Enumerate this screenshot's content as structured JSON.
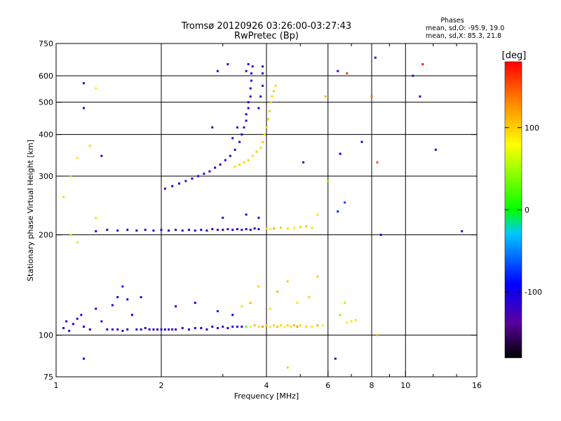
{
  "chart_data": {
    "type": "scatter",
    "title": "Tromsø 20120926 03:26:00-03:27:43",
    "subtitle": "RwPretec (Bp)",
    "xlabel": "Frequency [MHz]",
    "ylabel": "Stationary phase Virtual Height [km]",
    "x_scale": "log",
    "y_scale": "log",
    "xlim": [
      1,
      16
    ],
    "ylim": [
      75,
      750
    ],
    "x_ticks": [
      1,
      2,
      4,
      6,
      8,
      10,
      16
    ],
    "y_ticks": [
      75,
      100,
      200,
      300,
      400,
      500,
      600,
      750
    ],
    "x_gridlines": [
      2,
      4,
      6,
      8,
      10
    ],
    "y_gridlines": [
      100,
      200,
      300,
      400,
      500,
      600
    ],
    "stats": {
      "heading": "Phases",
      "line1": "mean, sd,O: -95.9, 19.0",
      "line2": "mean, sd,X:  85.3, 21.8"
    },
    "colorbar": {
      "label": "[deg]",
      "min": -180,
      "max": 180,
      "ticks": [
        100,
        0,
        -100
      ],
      "colors": [
        "#000000",
        "#5a00a0",
        "#0000ff",
        "#00c8ff",
        "#00ff00",
        "#ffff00",
        "#ff8000",
        "#ff0000"
      ]
    },
    "series": [
      {
        "points": [
          [
            1.05,
            105,
            -110
          ],
          [
            1.07,
            110,
            -105
          ],
          [
            1.09,
            103,
            -115
          ],
          [
            1.12,
            108,
            -100
          ],
          [
            1.15,
            112,
            -110
          ],
          [
            1.18,
            115,
            -95
          ],
          [
            1.2,
            106,
            -105
          ],
          [
            1.25,
            104,
            -110
          ],
          [
            1.3,
            120,
            -100
          ],
          [
            1.35,
            110,
            -105
          ],
          [
            1.4,
            104,
            -110
          ],
          [
            1.45,
            104,
            -115
          ],
          [
            1.5,
            104,
            -110
          ],
          [
            1.55,
            103,
            -105
          ],
          [
            1.6,
            104,
            -110
          ],
          [
            1.65,
            115,
            -90
          ],
          [
            1.7,
            104,
            -110
          ],
          [
            1.75,
            104,
            -108
          ],
          [
            1.8,
            105,
            -110
          ],
          [
            1.85,
            104,
            -112
          ],
          [
            1.9,
            104,
            -110
          ],
          [
            1.95,
            104,
            -108
          ],
          [
            2.0,
            104,
            -110
          ],
          [
            2.05,
            104,
            -106
          ],
          [
            2.1,
            104,
            -110
          ],
          [
            2.15,
            104,
            -108
          ],
          [
            2.2,
            104,
            -110
          ],
          [
            2.3,
            105,
            -108
          ],
          [
            2.4,
            104,
            -110
          ],
          [
            2.5,
            105,
            -110
          ],
          [
            2.6,
            105,
            -108
          ],
          [
            2.7,
            104,
            -110
          ],
          [
            2.8,
            106,
            -100
          ],
          [
            2.9,
            105,
            -110
          ],
          [
            3.0,
            106,
            -105
          ],
          [
            3.1,
            105,
            -108
          ],
          [
            3.2,
            106,
            -110
          ],
          [
            3.3,
            106,
            -95
          ],
          [
            3.4,
            106,
            -100
          ],
          [
            3.5,
            106,
            30
          ],
          [
            3.6,
            106,
            70
          ],
          [
            3.7,
            107,
            110
          ],
          [
            3.8,
            106,
            95
          ],
          [
            3.9,
            106,
            120
          ],
          [
            4.0,
            107,
            105
          ],
          [
            4.1,
            106,
            90
          ],
          [
            4.2,
            107,
            100
          ],
          [
            4.3,
            106,
            110
          ],
          [
            4.4,
            107,
            95
          ],
          [
            4.5,
            106,
            85
          ],
          [
            4.6,
            107,
            100
          ],
          [
            4.7,
            106,
            90
          ],
          [
            4.8,
            107,
            105
          ],
          [
            4.9,
            106,
            120
          ],
          [
            5.0,
            107,
            95
          ],
          [
            5.2,
            106,
            100
          ],
          [
            5.4,
            106,
            90
          ],
          [
            5.6,
            107,
            110
          ],
          [
            5.8,
            107,
            85
          ],
          [
            6.8,
            109,
            85
          ],
          [
            7.0,
            110,
            90
          ],
          [
            7.2,
            111,
            95
          ],
          [
            1.45,
            123,
            -100
          ],
          [
            1.5,
            130,
            -95
          ],
          [
            1.55,
            140,
            -80
          ],
          [
            1.6,
            128,
            -90
          ],
          [
            1.75,
            130,
            -85
          ],
          [
            2.2,
            122,
            -90
          ],
          [
            2.5,
            125,
            -95
          ],
          [
            2.9,
            118,
            -80
          ],
          [
            3.2,
            115,
            -90
          ],
          [
            3.4,
            122,
            60
          ],
          [
            3.6,
            125,
            110
          ],
          [
            3.8,
            140,
            100
          ],
          [
            4.1,
            120,
            90
          ],
          [
            4.3,
            135,
            110
          ],
          [
            4.6,
            145,
            100
          ],
          [
            4.9,
            125,
            90
          ],
          [
            5.3,
            130,
            95
          ],
          [
            5.6,
            150,
            100
          ],
          [
            6.5,
            115,
            40
          ],
          [
            6.7,
            125,
            50
          ],
          [
            1.3,
            205,
            -110
          ],
          [
            1.4,
            207,
            -105
          ],
          [
            1.5,
            206,
            -110
          ],
          [
            1.6,
            207,
            -108
          ],
          [
            1.7,
            206,
            -110
          ],
          [
            1.8,
            207,
            -106
          ],
          [
            1.9,
            206,
            -110
          ],
          [
            2.0,
            207,
            -108
          ],
          [
            2.1,
            206,
            -110
          ],
          [
            2.2,
            207,
            -105
          ],
          [
            2.3,
            206,
            -110
          ],
          [
            2.4,
            207,
            -108
          ],
          [
            2.5,
            206,
            -110
          ],
          [
            2.6,
            207,
            -105
          ],
          [
            2.7,
            206,
            -110
          ],
          [
            2.8,
            208,
            -100
          ],
          [
            2.9,
            207,
            -105
          ],
          [
            3.0,
            207,
            -100
          ],
          [
            3.1,
            208,
            -110
          ],
          [
            3.2,
            207,
            -105
          ],
          [
            3.3,
            208,
            -100
          ],
          [
            3.4,
            207,
            -110
          ],
          [
            3.5,
            208,
            -95
          ],
          [
            3.6,
            207,
            -105
          ],
          [
            3.7,
            209,
            -100
          ],
          [
            3.8,
            208,
            -105
          ],
          [
            4.0,
            209,
            100
          ],
          [
            4.1,
            208,
            90
          ],
          [
            4.2,
            209,
            110
          ],
          [
            4.4,
            210,
            100
          ],
          [
            4.6,
            209,
            95
          ],
          [
            4.8,
            210,
            85
          ],
          [
            5.0,
            211,
            100
          ],
          [
            5.2,
            212,
            105
          ],
          [
            5.4,
            210,
            95
          ],
          [
            3.0,
            225,
            -110
          ],
          [
            3.5,
            230,
            -100
          ],
          [
            3.8,
            225,
            -105
          ],
          [
            5.6,
            230,
            90
          ],
          [
            6.4,
            235,
            -80
          ],
          [
            6.7,
            250,
            -70
          ],
          [
            2.05,
            275,
            -110
          ],
          [
            2.15,
            280,
            -112
          ],
          [
            2.25,
            285,
            -108
          ],
          [
            2.35,
            290,
            -110
          ],
          [
            2.45,
            295,
            -112
          ],
          [
            2.55,
            300,
            -108
          ],
          [
            2.65,
            305,
            -110
          ],
          [
            2.75,
            310,
            -112
          ],
          [
            2.85,
            318,
            -108
          ],
          [
            2.95,
            325,
            -110
          ],
          [
            3.05,
            335,
            -112
          ],
          [
            3.15,
            345,
            -108
          ],
          [
            3.25,
            360,
            -110
          ],
          [
            3.35,
            380,
            -112
          ],
          [
            3.4,
            400,
            -110
          ],
          [
            3.45,
            420,
            -115
          ],
          [
            3.5,
            440,
            -110
          ],
          [
            3.5,
            460,
            -105
          ],
          [
            3.55,
            480,
            -110
          ],
          [
            3.55,
            500,
            -112
          ],
          [
            3.6,
            520,
            -115
          ],
          [
            3.6,
            550,
            -110
          ],
          [
            3.62,
            580,
            -112
          ],
          [
            3.62,
            610,
            -110
          ],
          [
            3.65,
            640,
            -115
          ],
          [
            3.55,
            650,
            -120
          ],
          [
            3.5,
            620,
            -118
          ],
          [
            3.3,
            420,
            -115
          ],
          [
            3.2,
            390,
            -110
          ],
          [
            3.8,
            480,
            -110
          ],
          [
            3.85,
            520,
            -112
          ],
          [
            3.9,
            560,
            -115
          ],
          [
            3.9,
            610,
            -110
          ],
          [
            3.9,
            640,
            -112
          ],
          [
            3.25,
            320,
            95
          ],
          [
            3.35,
            325,
            100
          ],
          [
            3.45,
            330,
            95
          ],
          [
            3.55,
            335,
            100
          ],
          [
            3.65,
            345,
            95
          ],
          [
            3.75,
            355,
            100
          ],
          [
            3.85,
            365,
            95
          ],
          [
            3.9,
            380,
            100
          ],
          [
            3.95,
            400,
            95
          ],
          [
            4.0,
            420,
            100
          ],
          [
            4.05,
            445,
            95
          ],
          [
            4.08,
            470,
            100
          ],
          [
            4.12,
            500,
            105
          ],
          [
            4.15,
            520,
            95
          ],
          [
            4.2,
            540,
            100
          ],
          [
            4.25,
            560,
            95
          ],
          [
            1.1,
            300,
            50
          ],
          [
            1.15,
            340,
            90
          ],
          [
            1.2,
            480,
            -110
          ],
          [
            1.2,
            570,
            -115
          ],
          [
            1.25,
            370,
            95
          ],
          [
            1.3,
            550,
            90
          ],
          [
            1.05,
            260,
            60
          ],
          [
            1.1,
            200,
            60
          ],
          [
            1.15,
            190,
            60
          ],
          [
            1.2,
            85,
            -100
          ],
          [
            1.3,
            225,
            60
          ],
          [
            1.35,
            345,
            -110
          ],
          [
            2.8,
            420,
            -110
          ],
          [
            2.9,
            620,
            -110
          ],
          [
            3.1,
            650,
            -120
          ],
          [
            5.9,
            520,
            110
          ],
          [
            6.4,
            620,
            -110
          ],
          [
            6.8,
            610,
            160
          ],
          [
            8.0,
            520,
            140
          ],
          [
            8.2,
            680,
            -120
          ],
          [
            8.3,
            330,
            150
          ],
          [
            8.5,
            200,
            -100
          ],
          [
            8.3,
            100,
            110
          ],
          [
            10.5,
            600,
            -110
          ],
          [
            11.2,
            650,
            170
          ],
          [
            11.0,
            520,
            -110
          ],
          [
            12.2,
            360,
            -110
          ],
          [
            14.5,
            205,
            -110
          ],
          [
            6.3,
            85,
            -110
          ],
          [
            6.0,
            290,
            40
          ],
          [
            6.5,
            350,
            -90
          ],
          [
            7.5,
            380,
            -110
          ],
          [
            5.1,
            330,
            -110
          ],
          [
            4.6,
            80,
            100
          ]
        ]
      }
    ]
  }
}
